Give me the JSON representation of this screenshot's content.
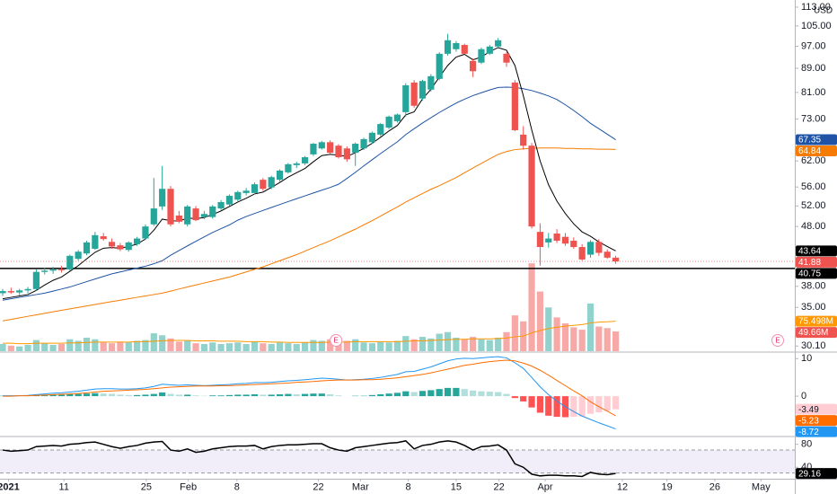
{
  "chart_data": [
    {
      "type": "candlestick",
      "currency": "USD",
      "log_scale": true,
      "ylim": [
        29.5,
        116.2
      ],
      "yticks": [
        {
          "value": 113,
          "label": "113.00"
        },
        {
          "value": 105,
          "label": "105.00"
        },
        {
          "value": 97,
          "label": "97.00"
        },
        {
          "value": 89,
          "label": "89.00"
        },
        {
          "value": 81,
          "label": "81.00"
        },
        {
          "value": 73,
          "label": "73.00"
        },
        {
          "value": 62,
          "label": "62.00"
        },
        {
          "value": 56,
          "label": "56.00"
        },
        {
          "value": 52,
          "label": "52.00"
        },
        {
          "value": 48,
          "label": "48.00"
        },
        {
          "value": 38,
          "label": "38.00"
        },
        {
          "value": 35,
          "label": "35.00"
        },
        {
          "value": 30.1,
          "label": "30.10"
        }
      ],
      "candles": {
        "up_color": "#26a69a",
        "down_color": "#ef5350",
        "last_label": "41.88",
        "open": [
          37.0,
          37.3,
          37.1,
          37.4,
          37.6,
          40.2,
          40.4,
          40.6,
          40.6,
          42.3,
          43.2,
          44.0,
          46.2,
          45.2,
          44.6,
          43.8,
          44.8,
          45.8,
          48.4,
          51.9,
          55.6,
          50.1,
          48.4,
          51.5,
          49.8,
          49.8,
          51.5,
          52.3,
          53.3,
          54.7,
          54.7,
          57.6,
          55.9,
          57.6,
          59.3,
          61.0,
          61.4,
          63.6,
          65.1,
          66.7,
          65.8,
          65.1,
          64.0,
          65.1,
          66.7,
          68.7,
          70.6,
          72.4,
          75.0,
          84.2,
          79.1,
          81.9,
          85.4,
          94.2,
          95.9,
          97.5,
          91.6,
          91.0,
          94.2,
          96.9,
          94.2,
          84.2,
          68.7,
          65.8,
          47.0,
          45.1,
          46.7,
          46.1,
          45.4,
          44.3,
          43.0,
          45.2,
          43.5,
          42.5
        ],
        "high": [
          37.6,
          37.8,
          37.6,
          37.9,
          40.6,
          40.9,
          41.0,
          41.2,
          43.0,
          43.8,
          45.4,
          47.0,
          46.8,
          45.8,
          45.0,
          45.3,
          46.1,
          48.4,
          58.0,
          60.8,
          56.2,
          51.0,
          52.2,
          52.0,
          51.0,
          52.2,
          53.2,
          54.4,
          55.2,
          55.8,
          57.0,
          58.0,
          58.5,
          60.0,
          61.5,
          61.8,
          63.2,
          66.5,
          67.0,
          67.2,
          66.2,
          65.6,
          66.6,
          67.9,
          69.5,
          71.9,
          74.0,
          74.6,
          84.0,
          85.0,
          85.1,
          87.0,
          94.8,
          101.8,
          99.0,
          98.0,
          92.5,
          96.5,
          97.5,
          100.2,
          94.8,
          85.0,
          71.0,
          66.5,
          48.6,
          46.8,
          47.5,
          46.8,
          46.0,
          44.8,
          45.5,
          45.7,
          43.9,
          42.8
        ],
        "low": [
          36.6,
          36.9,
          36.7,
          37.0,
          37.4,
          39.8,
          39.9,
          40.1,
          40.4,
          42.0,
          42.9,
          43.8,
          45.4,
          44.0,
          43.6,
          43.5,
          44.5,
          45.5,
          48.1,
          51.2,
          48.0,
          48.6,
          48.0,
          49.0,
          49.4,
          49.5,
          51.2,
          52.0,
          53.0,
          54.2,
          54.4,
          55.2,
          55.5,
          57.2,
          59.0,
          60.3,
          61.0,
          63.2,
          64.8,
          63.6,
          62.6,
          61.8,
          60.8,
          64.7,
          66.3,
          68.3,
          70.2,
          72.0,
          73.7,
          76.3,
          78.5,
          81.3,
          85.0,
          93.5,
          95.0,
          94.0,
          86.0,
          90.5,
          93.8,
          96.5,
          89.5,
          69.6,
          64.8,
          47.6,
          41.2,
          44.2,
          45.0,
          44.5,
          44.0,
          42.0,
          42.5,
          42.8,
          42.3,
          41.5
        ],
        "close": [
          37.3,
          37.1,
          37.4,
          37.6,
          40.2,
          40.4,
          40.6,
          40.5,
          42.8,
          43.5,
          45.1,
          46.4,
          45.7,
          44.4,
          43.9,
          45.1,
          45.8,
          48.0,
          51.5,
          55.6,
          48.4,
          48.9,
          51.9,
          49.2,
          50.4,
          51.9,
          52.8,
          54.1,
          54.9,
          55.2,
          56.6,
          55.6,
          58.2,
          59.7,
          61.2,
          61.4,
          62.9,
          66.3,
          66.7,
          64.0,
          62.9,
          62.4,
          66.3,
          67.5,
          69.2,
          71.6,
          73.7,
          74.3,
          83.3,
          76.9,
          84.7,
          86.3,
          94.2,
          99.3,
          98.2,
          94.2,
          88.0,
          95.9,
          96.9,
          99.3,
          91.0,
          69.9,
          65.8,
          48.0,
          44.3,
          45.8,
          45.4,
          44.9,
          44.3,
          42.2,
          45.2,
          43.3,
          42.5,
          41.88
        ]
      },
      "overlays": [
        {
          "color": "#f57c00",
          "last_label": "64.84",
          "values": [
            33.2,
            33.4,
            33.6,
            33.8,
            34.0,
            34.2,
            34.4,
            34.6,
            34.8,
            35.0,
            35.2,
            35.4,
            35.6,
            35.8,
            36.0,
            36.2,
            36.4,
            36.6,
            36.8,
            37.0,
            37.3,
            37.6,
            37.9,
            38.2,
            38.5,
            38.8,
            39.1,
            39.4,
            39.8,
            40.2,
            40.6,
            41.0,
            41.5,
            42.0,
            42.5,
            43.0,
            43.6,
            44.2,
            44.8,
            45.4,
            46.1,
            46.8,
            47.5,
            48.3,
            49.1,
            50.0,
            50.9,
            51.8,
            52.8,
            53.7,
            54.6,
            55.5,
            56.3,
            57.2,
            58.1,
            59.2,
            60.3,
            61.4,
            62.5,
            63.6,
            64.3,
            64.8,
            65.0,
            65.1,
            65.2,
            65.2,
            65.2,
            65.1,
            65.1,
            65.0,
            65.0,
            64.9,
            64.9,
            64.84
          ]
        },
        {
          "color": "#1e53a6",
          "last_label": "67.35",
          "values": [
            36.0,
            36.2,
            36.4,
            36.6,
            36.8,
            37.0,
            37.3,
            37.6,
            37.9,
            38.3,
            38.7,
            39.1,
            39.5,
            39.9,
            40.2,
            40.5,
            40.8,
            41.1,
            41.5,
            42.0,
            42.9,
            43.7,
            44.5,
            45.3,
            46.1,
            46.9,
            47.6,
            48.3,
            49.2,
            49.9,
            50.5,
            51.1,
            51.7,
            52.3,
            52.9,
            53.5,
            54.1,
            54.7,
            55.3,
            55.9,
            56.6,
            57.9,
            59.3,
            60.8,
            62.3,
            63.8,
            65.3,
            66.8,
            68.7,
            70.3,
            71.9,
            73.4,
            74.9,
            76.3,
            77.7,
            78.9,
            80.0,
            80.9,
            81.8,
            82.6,
            82.7,
            82.6,
            82.2,
            81.6,
            80.8,
            79.9,
            78.8,
            77.2,
            75.5,
            73.7,
            71.8,
            70.3,
            68.8,
            67.35
          ]
        },
        {
          "color": "#000000",
          "last_label": "43.64",
          "values": [
            36.2,
            36.4,
            36.6,
            36.8,
            37.4,
            38.2,
            38.9,
            39.4,
            40.3,
            41.2,
            42.3,
            43.4,
            44.1,
            44.2,
            44.1,
            44.4,
            44.8,
            45.7,
            47.3,
            49.4,
            49.1,
            49.0,
            49.6,
            49.5,
            49.7,
            50.3,
            51.0,
            51.9,
            52.8,
            53.6,
            54.5,
            54.9,
            55.9,
            57.0,
            58.2,
            59.2,
            60.2,
            61.8,
            63.3,
            63.6,
            63.4,
            63.1,
            64.0,
            65.1,
            66.4,
            68.0,
            69.7,
            71.2,
            74.2,
            75.1,
            79.0,
            82.0,
            86.0,
            90.0,
            93.0,
            94.0,
            92.0,
            93.0,
            95.0,
            96.5,
            95.5,
            90.0,
            80.0,
            70.0,
            62.0,
            56.5,
            53.0,
            50.5,
            48.5,
            47.0,
            46.2,
            45.2,
            44.4,
            43.64
          ]
        }
      ],
      "hline": {
        "value": 40.75,
        "label": "40.75",
        "color": "#000000"
      },
      "volume": {
        "ylim": [
          0,
          883
        ],
        "last_label": "49.66M",
        "values": [
          18,
          14,
          12,
          16,
          28,
          20,
          16,
          18,
          30,
          26,
          34,
          30,
          22,
          20,
          24,
          22,
          26,
          28,
          45,
          40,
          32,
          24,
          26,
          20,
          18,
          22,
          18,
          20,
          22,
          18,
          24,
          20,
          18,
          22,
          20,
          18,
          22,
          28,
          26,
          30,
          24,
          26,
          30,
          22,
          20,
          24,
          22,
          26,
          38,
          30,
          36,
          32,
          44,
          48,
          34,
          30,
          36,
          30,
          28,
          34,
          48,
          90,
          75,
          221,
          150,
          110,
          85,
          70,
          60,
          54,
          120,
          62,
          58,
          49.66
        ],
        "ma": {
          "color": "#ff9800",
          "last_label": "75.498M",
          "values": [
            20,
            20,
            19,
            19,
            20,
            20,
            20,
            20,
            21,
            21,
            22,
            23,
            23,
            23,
            23,
            23,
            24,
            24,
            25,
            26,
            27,
            27,
            27,
            26,
            26,
            26,
            25,
            25,
            25,
            24,
            24,
            24,
            23,
            23,
            22,
            22,
            22,
            22,
            22,
            23,
            23,
            23,
            24,
            24,
            24,
            24,
            24,
            24,
            25,
            26,
            26,
            27,
            28,
            29,
            30,
            30,
            31,
            31,
            31,
            32,
            33,
            36,
            38,
            46,
            52,
            57,
            60,
            63,
            65,
            67,
            71,
            73,
            74,
            75.498
          ]
        }
      },
      "events": [
        {
          "x": 39.7,
          "label": "E"
        },
        {
          "x": 92.3,
          "label": "E"
        }
      ]
    },
    {
      "type": "macd",
      "ylim": [
        -10.5,
        11.5
      ],
      "yticks": [
        10,
        0
      ],
      "hist_colors": [
        "#26a69a",
        "#b2dfdb",
        "#ffcdd2",
        "#ff5252"
      ],
      "macd": {
        "color": "#2196f3",
        "last_label": "-8.72",
        "values": [
          0.1,
          0.1,
          0.1,
          0.2,
          0.4,
          0.6,
          0.8,
          0.9,
          1.1,
          1.3,
          1.6,
          1.9,
          2.0,
          2.0,
          1.9,
          1.9,
          2.0,
          2.2,
          2.6,
          3.2,
          3.0,
          2.9,
          3.0,
          2.9,
          2.8,
          2.9,
          3.0,
          3.1,
          3.3,
          3.4,
          3.6,
          3.6,
          3.7,
          3.9,
          4.1,
          4.2,
          4.4,
          4.6,
          4.8,
          4.7,
          4.5,
          4.3,
          4.4,
          4.5,
          4.7,
          5.0,
          5.4,
          5.8,
          6.5,
          6.6,
          7.2,
          7.8,
          8.6,
          9.4,
          9.9,
          10.1,
          10.0,
          10.2,
          10.4,
          10.5,
          10.2,
          8.9,
          7.4,
          5.0,
          2.5,
          0.4,
          -1.3,
          -2.8,
          -4.1,
          -5.3,
          -6.2,
          -7.1,
          -7.9,
          -8.72
        ]
      },
      "signal": {
        "color": "#ff6d00",
        "last_label": "-5.23",
        "values": [
          0.0,
          0.0,
          0.1,
          0.1,
          0.2,
          0.3,
          0.4,
          0.5,
          0.6,
          0.7,
          0.9,
          1.1,
          1.3,
          1.4,
          1.5,
          1.6,
          1.7,
          1.8,
          2.0,
          2.2,
          2.4,
          2.5,
          2.6,
          2.7,
          2.7,
          2.7,
          2.8,
          2.8,
          2.9,
          3.0,
          3.1,
          3.2,
          3.3,
          3.4,
          3.5,
          3.7,
          3.8,
          3.9,
          4.1,
          4.2,
          4.3,
          4.3,
          4.3,
          4.4,
          4.4,
          4.5,
          4.7,
          4.9,
          5.2,
          5.5,
          5.8,
          6.2,
          6.7,
          7.2,
          7.7,
          8.2,
          8.5,
          8.9,
          9.2,
          9.4,
          9.6,
          9.4,
          8.8,
          8.0,
          6.9,
          5.6,
          4.2,
          2.8,
          1.4,
          0.1,
          -1.5,
          -2.8,
          -4.0,
          -5.23
        ]
      },
      "histogram": {
        "last_label": "-3.49",
        "values": [
          0.1,
          0.1,
          0,
          0.1,
          0.2,
          0.3,
          0.4,
          0.4,
          0.5,
          0.6,
          0.7,
          0.8,
          0.7,
          0.6,
          0.4,
          0.3,
          0.3,
          0.4,
          0.6,
          1.0,
          0.6,
          0.4,
          0.4,
          0.2,
          0.1,
          0.2,
          0.2,
          0.3,
          0.4,
          0.4,
          0.5,
          0.4,
          0.4,
          0.5,
          0.6,
          0.5,
          0.6,
          0.7,
          0.7,
          0.5,
          0.2,
          0,
          0.1,
          0.1,
          0.3,
          0.5,
          0.7,
          0.9,
          1.3,
          1.1,
          1.4,
          1.6,
          1.9,
          2.2,
          2.2,
          1.9,
          1.5,
          1.3,
          1.2,
          1.1,
          0.6,
          -0.5,
          -1.4,
          -3.0,
          -4.4,
          -5.2,
          -5.5,
          -5.6,
          -5.5,
          -5.4,
          -4.7,
          -4.3,
          -3.9,
          -3.49
        ]
      }
    },
    {
      "type": "rsi",
      "ylim": [
        20,
        92
      ],
      "yticks": [
        80,
        40
      ],
      "band": [
        30,
        70
      ],
      "band_color": "#7e57c2",
      "color": "#000000",
      "last_label": "29.16",
      "values": [
        70,
        68,
        69,
        70,
        76,
        77,
        78,
        77,
        80,
        81,
        83,
        84,
        80,
        76,
        73,
        76,
        78,
        82,
        84,
        85,
        70,
        68,
        72,
        66,
        68,
        72,
        74,
        76,
        77,
        77,
        78,
        72,
        76,
        78,
        79,
        79,
        80,
        81,
        81,
        74,
        70,
        68,
        74,
        76,
        78,
        80,
        82,
        83,
        86,
        72,
        78,
        80,
        84,
        86,
        84,
        78,
        70,
        76,
        77,
        79,
        70,
        46,
        40,
        28,
        25,
        26,
        26,
        25,
        25,
        24,
        31,
        28,
        27,
        29.16
      ],
      "xlim": [
        -0.32,
        94.33
      ],
      "xticks": [
        {
          "value": 0.7,
          "label": "2021"
        },
        {
          "value": 7.3,
          "label": "11"
        },
        {
          "value": 17.1,
          "label": "25"
        },
        {
          "value": 22.1,
          "label": "Feb"
        },
        {
          "value": 27.9,
          "label": "8"
        },
        {
          "value": 37.6,
          "label": "22"
        },
        {
          "value": 42.6,
          "label": "Mar"
        },
        {
          "value": 48.3,
          "label": "8"
        },
        {
          "value": 54.0,
          "label": "15"
        },
        {
          "value": 59.1,
          "label": "22"
        },
        {
          "value": 64.6,
          "label": "Apr"
        },
        {
          "value": 73.8,
          "label": "12"
        },
        {
          "value": 79.1,
          "label": "19"
        },
        {
          "value": 84.8,
          "label": "26"
        },
        {
          "value": 90.3,
          "label": "May"
        }
      ]
    }
  ]
}
